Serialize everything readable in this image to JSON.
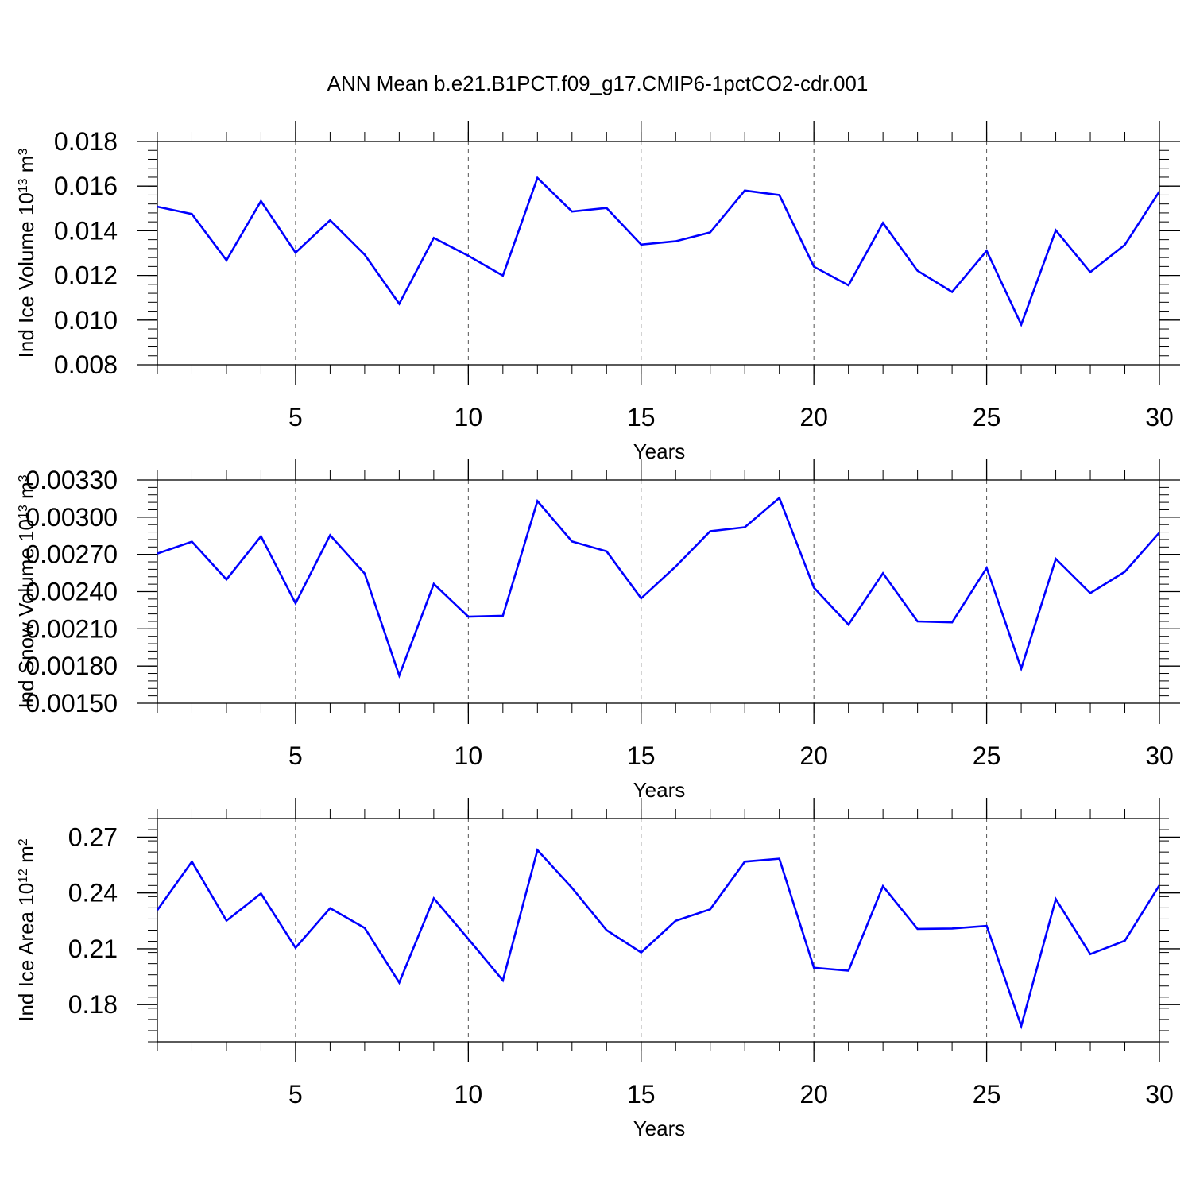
{
  "figure": {
    "title": "ANN Mean b.e21.B1PCT.f09_g17.CMIP6-1pctCO2-cdr.001"
  },
  "chart_data": [
    {
      "type": "line",
      "title": "",
      "xlabel": "Years",
      "ylabel": "Ind Ice Volume 10",
      "ylabel_exp": "13",
      "ylabel_unit": " m",
      "ylabel_unit_exp": "3",
      "xlim": [
        1,
        30
      ],
      "ylim": [
        0.008,
        0.018
      ],
      "xticks": [
        5,
        10,
        15,
        20,
        25,
        30
      ],
      "yticks": [
        "0.008",
        "0.010",
        "0.012",
        "0.014",
        "0.016",
        "0.018"
      ],
      "grid_x": [
        5,
        10,
        15,
        20,
        25
      ],
      "line_color": "#0000ff",
      "series": [
        {
          "name": "Ind Ice Volume",
          "x": [
            1,
            2,
            3,
            4,
            5,
            6,
            7,
            8,
            9,
            10,
            11,
            12,
            13,
            14,
            15,
            16,
            17,
            18,
            19,
            20,
            21,
            22,
            23,
            24,
            25,
            26,
            27,
            28,
            29,
            30
          ],
          "values": [
            0.01508,
            0.01475,
            0.01268,
            0.01533,
            0.01302,
            0.01447,
            0.01293,
            0.01073,
            0.01368,
            0.01288,
            0.01199,
            0.01637,
            0.01486,
            0.01502,
            0.01338,
            0.01353,
            0.01393,
            0.0158,
            0.0156,
            0.01239,
            0.01156,
            0.01435,
            0.01221,
            0.01126,
            0.0131,
            0.0098,
            0.01402,
            0.01215,
            0.01337,
            0.01576
          ]
        }
      ]
    },
    {
      "type": "line",
      "title": "",
      "xlabel": "Years",
      "ylabel": "Ind Snow Volume 10",
      "ylabel_exp": "13",
      "ylabel_unit": " m",
      "ylabel_unit_exp": "3",
      "xlim": [
        1,
        30
      ],
      "ylim": [
        0.0015,
        0.0033
      ],
      "xticks": [
        5,
        10,
        15,
        20,
        25,
        30
      ],
      "yticks": [
        "0.00150",
        "0.00180",
        "0.00210",
        "0.00240",
        "0.00270",
        "0.00300",
        "0.00330"
      ],
      "grid_x": [
        5,
        10,
        15,
        20,
        25
      ],
      "line_color": "#0000ff",
      "series": [
        {
          "name": "Ind Snow Volume",
          "x": [
            1,
            2,
            3,
            4,
            5,
            6,
            7,
            8,
            9,
            10,
            11,
            12,
            13,
            14,
            15,
            16,
            17,
            18,
            19,
            20,
            21,
            22,
            23,
            24,
            25,
            26,
            27,
            28,
            29,
            30
          ],
          "values": [
            0.002707,
            0.002803,
            0.002498,
            0.002846,
            0.002306,
            0.002855,
            0.002546,
            0.001723,
            0.002462,
            0.002198,
            0.002205,
            0.00313,
            0.002804,
            0.002725,
            0.002346,
            0.002602,
            0.002887,
            0.002919,
            0.003155,
            0.002432,
            0.002134,
            0.002548,
            0.00216,
            0.002152,
            0.002591,
            0.00178,
            0.002664,
            0.002388,
            0.00256,
            0.002876
          ]
        }
      ]
    },
    {
      "type": "line",
      "title": "",
      "xlabel": "Years",
      "ylabel": "Ind Ice Area 10",
      "ylabel_exp": "12",
      "ylabel_unit": " m",
      "ylabel_unit_exp": "2",
      "xlim": [
        1,
        30
      ],
      "ylim": [
        0.16,
        0.28
      ],
      "xticks": [
        5,
        10,
        15,
        20,
        25,
        30
      ],
      "yticks": [
        "0.18",
        "0.21",
        "0.24",
        "0.27"
      ],
      "grid_x": [
        5,
        10,
        15,
        20,
        25
      ],
      "line_color": "#0000ff",
      "series": [
        {
          "name": "Ind Ice Area",
          "x": [
            1,
            2,
            3,
            4,
            5,
            6,
            7,
            8,
            9,
            10,
            11,
            12,
            13,
            14,
            15,
            16,
            17,
            18,
            19,
            20,
            21,
            22,
            23,
            24,
            25,
            26,
            27,
            28,
            29,
            30
          ],
          "values": [
            0.2308,
            0.2568,
            0.2251,
            0.2397,
            0.2105,
            0.2318,
            0.2212,
            0.1918,
            0.2371,
            0.2153,
            0.193,
            0.263,
            0.2427,
            0.22,
            0.208,
            0.225,
            0.2312,
            0.2568,
            0.2584,
            0.1998,
            0.1982,
            0.2436,
            0.2207,
            0.2209,
            0.2223,
            0.1685,
            0.2367,
            0.2071,
            0.2143,
            0.2441
          ]
        }
      ]
    }
  ]
}
